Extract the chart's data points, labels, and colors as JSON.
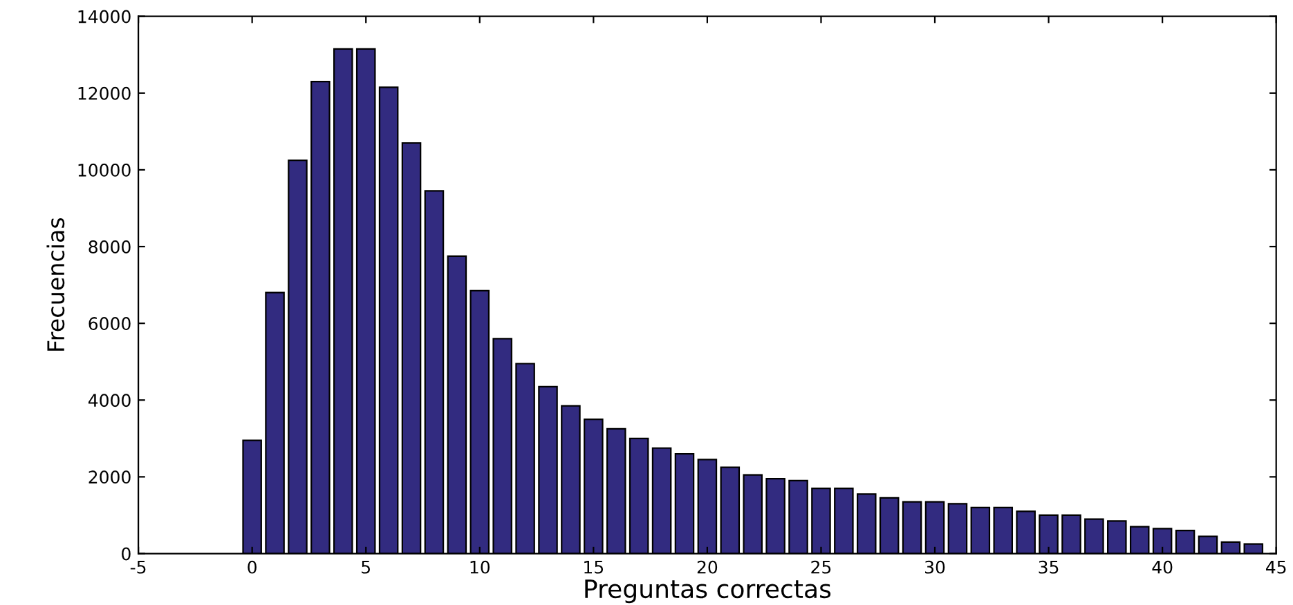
{
  "chart_data": {
    "type": "bar",
    "xlabel": "Preguntas correctas",
    "ylabel": "Frecuencias",
    "x": [
      0,
      1,
      2,
      3,
      4,
      5,
      6,
      7,
      8,
      9,
      10,
      11,
      12,
      13,
      14,
      15,
      16,
      17,
      18,
      19,
      20,
      21,
      22,
      23,
      24,
      25,
      26,
      27,
      28,
      29,
      30,
      31,
      32,
      33,
      34,
      35,
      36,
      37,
      38,
      39,
      40,
      41,
      42,
      43,
      44
    ],
    "values": [
      2950,
      6800,
      10250,
      12300,
      13150,
      13150,
      12150,
      10700,
      9450,
      7750,
      6850,
      5600,
      4950,
      4350,
      3850,
      3500,
      3250,
      3000,
      2750,
      2600,
      2450,
      2250,
      2050,
      1950,
      1900,
      1700,
      1700,
      1550,
      1450,
      1350,
      1350,
      1300,
      1200,
      1200,
      1100,
      1000,
      1000,
      900,
      850,
      700,
      650,
      600,
      450,
      300,
      250
    ],
    "color": "#322b80",
    "xlim": [
      -5,
      45
    ],
    "xticks": [
      -5,
      0,
      5,
      10,
      15,
      20,
      25,
      30,
      35,
      40,
      45
    ],
    "ylim": [
      0,
      14000
    ],
    "yticks": [
      0,
      2000,
      4000,
      6000,
      8000,
      10000,
      12000,
      14000
    ],
    "grid": false
  }
}
